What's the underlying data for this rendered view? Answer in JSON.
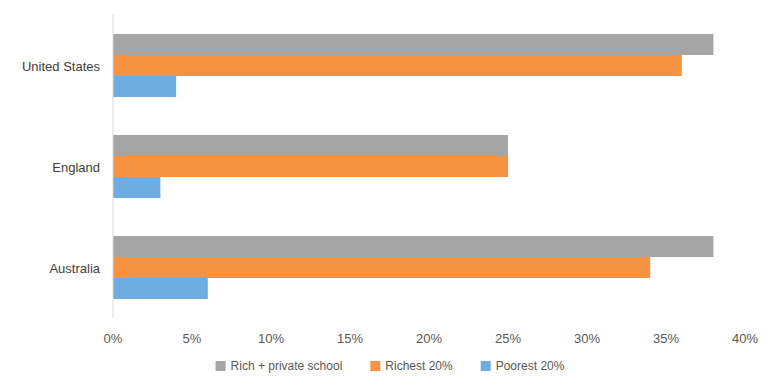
{
  "chart_data": {
    "type": "bar",
    "orientation": "horizontal",
    "categories": [
      "United States",
      "England",
      "Australia"
    ],
    "series": [
      {
        "name": "Rich + private school",
        "color": "#a5a5a5",
        "values": [
          38,
          25,
          38
        ]
      },
      {
        "name": "Richest 20%",
        "color": "#f59343",
        "values": [
          36,
          25,
          34
        ]
      },
      {
        "name": "Poorest 20%",
        "color": "#6fade0",
        "values": [
          4,
          3,
          6
        ]
      }
    ],
    "xlim": [
      0,
      40
    ],
    "xticks": [
      {
        "value": 0,
        "label": "0%"
      },
      {
        "value": 5,
        "label": "5%"
      },
      {
        "value": 10,
        "label": "10%"
      },
      {
        "value": 15,
        "label": "15%"
      },
      {
        "value": 20,
        "label": "20%"
      },
      {
        "value": 25,
        "label": "25%"
      },
      {
        "value": 30,
        "label": "30%"
      },
      {
        "value": 35,
        "label": "35%"
      },
      {
        "value": 40,
        "label": "40%"
      }
    ],
    "grid": false,
    "legend": "bottom"
  }
}
